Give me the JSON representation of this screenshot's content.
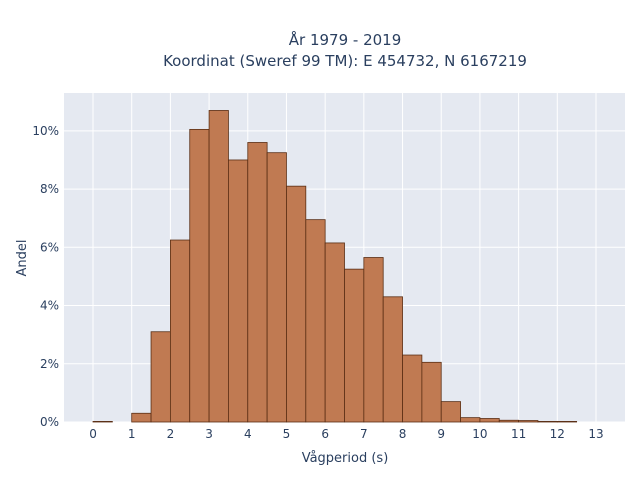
{
  "chart_data": {
    "type": "bar",
    "title": [
      "År 1979 - 2019",
      "Koordinat (Sweref 99 TM): E 454732, N 6167219"
    ],
    "xlabel": "Vågperiod (s)",
    "ylabel": "Andel",
    "x_ticks": [
      "0",
      "1",
      "2",
      "3",
      "4",
      "5",
      "6",
      "7",
      "8",
      "9",
      "10",
      "11",
      "12",
      "13"
    ],
    "y_ticks": [
      "0%",
      "2%",
      "4%",
      "6%",
      "8%",
      "10%"
    ],
    "y_tick_values": [
      0,
      2,
      4,
      6,
      8,
      10
    ],
    "xlim": [
      -0.75,
      13.75
    ],
    "ylim": [
      0,
      11.3
    ],
    "bin_width": 0.5,
    "bin_starts": [
      0,
      0.5,
      1,
      1.5,
      2,
      2.5,
      3,
      3.5,
      4,
      4.5,
      5,
      5.5,
      6,
      6.5,
      7,
      7.5,
      8,
      8.5,
      9,
      9.5,
      10,
      10.5,
      11,
      11.5,
      12,
      12.5
    ],
    "values": [
      0.02,
      0.0,
      0.3,
      3.1,
      6.25,
      10.05,
      10.7,
      9.0,
      9.6,
      9.25,
      8.1,
      6.95,
      6.15,
      5.25,
      5.65,
      4.3,
      2.3,
      2.05,
      0.7,
      0.15,
      0.12,
      0.06,
      0.05,
      0.02,
      0.02,
      0.0
    ],
    "grid": true,
    "colors": {
      "bar_fill": "#c07a52",
      "bar_edge": "#5a2e14",
      "plot_bg": "#e5e9f1",
      "grid": "#ffffff",
      "text": "#2a3f5f"
    }
  }
}
